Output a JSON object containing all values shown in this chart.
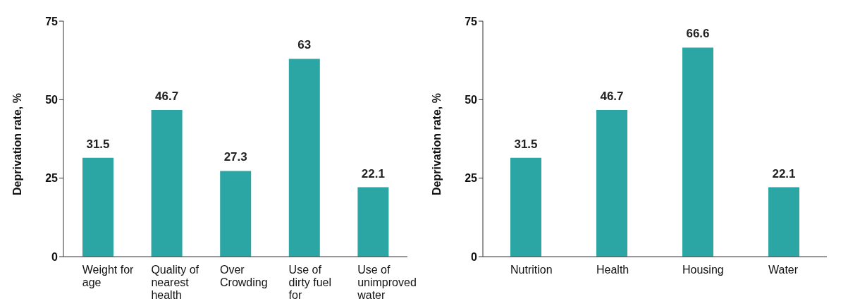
{
  "chart_data": [
    {
      "type": "bar",
      "ylabel": "Deprivation rate, %",
      "categories": [
        "Weight for age",
        "Quality of nearest health",
        "Over Crowding",
        "Use of dirty fuel for",
        "Use of unimproved water"
      ],
      "values": [
        31.5,
        46.7,
        27.3,
        63,
        22.1
      ],
      "color": "#2ca6a4",
      "ylim": [
        0,
        75
      ],
      "yticks": [
        0,
        25,
        50,
        75
      ],
      "data_labels": true,
      "grid": false,
      "legend": false
    },
    {
      "type": "bar",
      "ylabel": "Deprivation rate, %",
      "categories": [
        "Nutrition",
        "Health",
        "Housing",
        "Water"
      ],
      "values": [
        31.5,
        46.7,
        66.6,
        22.1
      ],
      "color": "#2ca6a4",
      "ylim": [
        0,
        75
      ],
      "yticks": [
        0,
        25,
        50,
        75
      ],
      "data_labels": true,
      "grid": false,
      "legend": false
    }
  ]
}
